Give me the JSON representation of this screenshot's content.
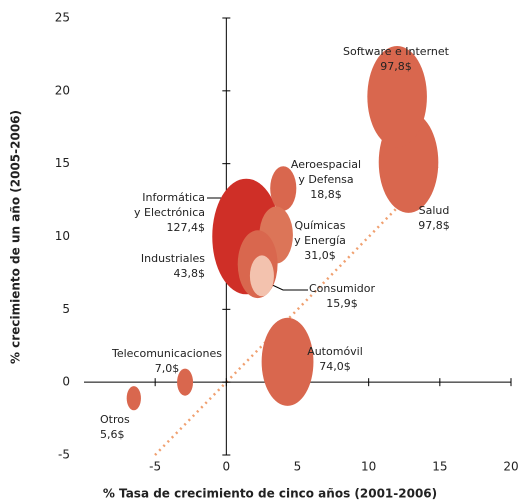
{
  "chart_data": {
    "type": "bubble",
    "x_label": "% Tasa de crecimiento de cinco años (2001-2006)",
    "y_label": "% crecimiento de un año (2005-2006)",
    "xlim": [
      -10,
      20
    ],
    "xticks": [
      -5,
      0,
      5,
      10,
      15,
      20
    ],
    "ylim": [
      -5,
      25
    ],
    "yticks": [
      -5,
      0,
      5,
      10,
      15,
      20,
      25
    ],
    "labels": [
      [
        "Software e Internet"
      ],
      [
        "Salud"
      ],
      [
        "Aeroespacial",
        "y Defensa"
      ],
      [
        "Informática",
        "y Electrónica"
      ],
      [
        "Químicas",
        "y Energía"
      ],
      [
        "Industriales"
      ],
      [
        "Consumidor"
      ],
      [
        "Automóvil"
      ],
      [
        "Telecomunicaciones"
      ],
      [
        "Otros"
      ]
    ],
    "x": [
      12.0,
      12.8,
      4.0,
      1.4,
      3.5,
      2.2,
      2.5,
      4.3,
      -2.9,
      -6.5
    ],
    "y": [
      19.6,
      15.1,
      13.3,
      10.0,
      10.1,
      8.1,
      7.3,
      1.4,
      0.0,
      -1.1
    ],
    "sizes": [
      97.8,
      97.8,
      18.8,
      127.4,
      31.0,
      43.8,
      15.9,
      74.0,
      7.0,
      5.6
    ],
    "value_labels": [
      "97,8$",
      "97,8$",
      "18,8$",
      "127,4$",
      "31,0$",
      "43,8$",
      "15,9$",
      "74,0$",
      "7,0$",
      "5,6$"
    ],
    "colors": [
      "#d9674e",
      "#d9674e",
      "#d9674e",
      "#cf2f27",
      "#dc7558",
      "#d9674e",
      "#f3c2ae",
      "#d9674e",
      "#d9674e",
      "#d9674e"
    ]
  }
}
